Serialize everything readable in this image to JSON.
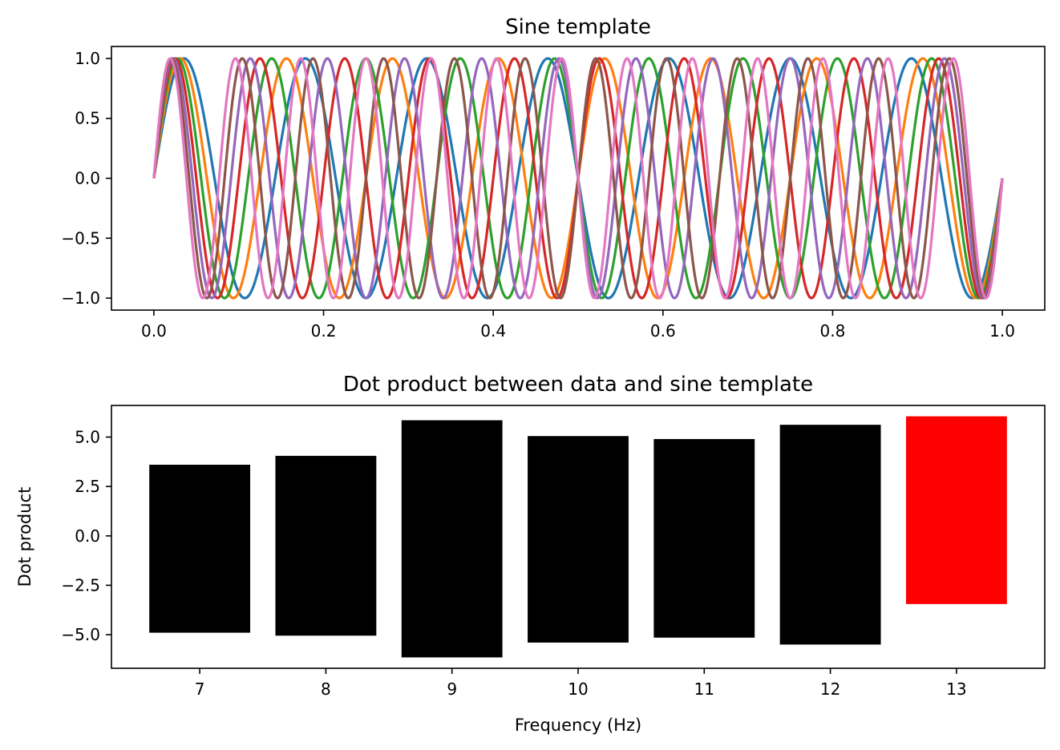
{
  "chart_data": [
    {
      "type": "line",
      "title": "Sine template",
      "xlabel": "",
      "ylabel": "",
      "xlim": [
        -0.05,
        1.05
      ],
      "ylim": [
        -1.1,
        1.1
      ],
      "x_ticks": [
        0.0,
        0.2,
        0.4,
        0.6,
        0.8,
        1.0
      ],
      "x_tick_labels": [
        "0.0",
        "0.2",
        "0.4",
        "0.6",
        "0.8",
        "1.0"
      ],
      "y_ticks": [
        1.0,
        0.5,
        0.0,
        -0.5,
        -1.0
      ],
      "y_tick_labels": [
        "1.0",
        "0.5",
        "0.0",
        "−0.5",
        "−1.0"
      ],
      "x_range": [
        0,
        1
      ],
      "function": "sin(2*pi*f*x)",
      "series": [
        {
          "frequency": 7,
          "color": "#1f77b4"
        },
        {
          "frequency": 8,
          "color": "#ff7f0e"
        },
        {
          "frequency": 9,
          "color": "#2ca02c"
        },
        {
          "frequency": 10,
          "color": "#d62728"
        },
        {
          "frequency": 11,
          "color": "#9467bd"
        },
        {
          "frequency": 12,
          "color": "#8c564b"
        },
        {
          "frequency": 13,
          "color": "#e377c2"
        }
      ],
      "grid": false,
      "legend": "none"
    },
    {
      "type": "bar",
      "title": "Dot product between data and sine template",
      "xlabel": "Frequency (Hz)",
      "ylabel": "Dot product",
      "categories": [
        7,
        8,
        9,
        10,
        11,
        12,
        13
      ],
      "x_tick_labels": [
        "7",
        "8",
        "9",
        "10",
        "11",
        "12",
        "13"
      ],
      "bar_top": [
        3.6,
        4.05,
        5.85,
        5.05,
        4.9,
        5.62,
        6.05
      ],
      "bar_bottom": [
        -4.9,
        -5.05,
        -6.15,
        -5.4,
        -5.15,
        -5.5,
        -3.45
      ],
      "bar_colors": [
        "#000000",
        "#000000",
        "#000000",
        "#000000",
        "#000000",
        "#000000",
        "#ff0000"
      ],
      "xlim": [
        6.3,
        13.7
      ],
      "ylim": [
        -6.7,
        6.6
      ],
      "y_ticks": [
        5.0,
        2.5,
        0.0,
        -2.5,
        -5.0
      ],
      "y_tick_labels": [
        "5.0",
        "2.5",
        "0.0",
        "−2.5",
        "−5.0"
      ],
      "grid": false,
      "legend": "none"
    }
  ]
}
